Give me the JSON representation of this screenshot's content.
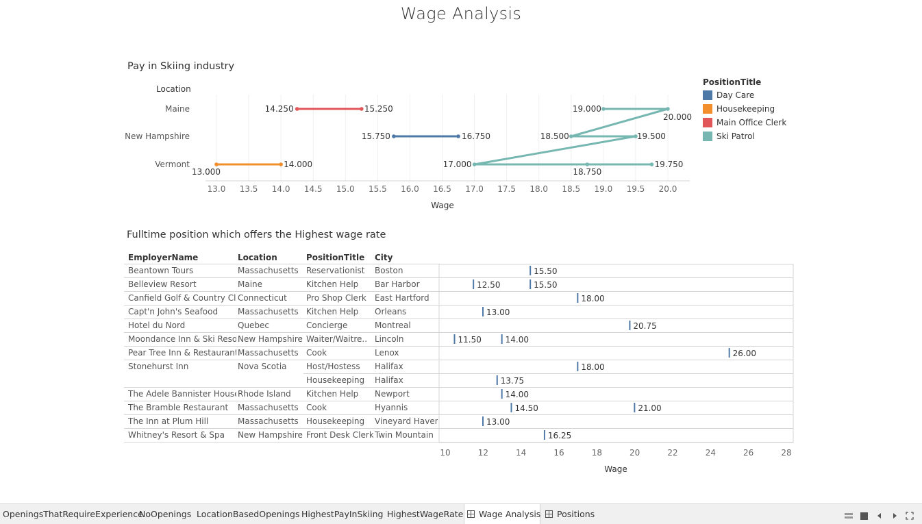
{
  "dashboard": {
    "title": "Wage Analysis"
  },
  "skiing": {
    "title": "Pay in Skiing industry",
    "row_header": "Location",
    "x_label": "Wage",
    "x_ticks": [
      "13.0",
      "13.5",
      "14.0",
      "14.5",
      "15.0",
      "15.5",
      "16.0",
      "16.5",
      "17.0",
      "17.5",
      "18.0",
      "18.5",
      "19.0",
      "19.5",
      "20.0"
    ],
    "locations": [
      "Maine",
      "New Hampshire",
      "Vermont"
    ]
  },
  "legend": {
    "title": "PositionTitle",
    "items": [
      {
        "label": "Day Care",
        "color": "#4e79a7"
      },
      {
        "label": "Housekeeping",
        "color": "#f28e2b"
      },
      {
        "label": "Main Office Clerk",
        "color": "#e15759"
      },
      {
        "label": "Ski Patrol",
        "color": "#76b7b2"
      }
    ]
  },
  "chart_data": [
    {
      "type": "line",
      "title": "Pay in Skiing industry",
      "xlabel": "Wage",
      "xlim": [
        12.8,
        20.3
      ],
      "rows": [
        "Maine",
        "New Hampshire",
        "Vermont"
      ],
      "series": [
        {
          "name": "Main Office Clerk",
          "points": [
            {
              "row": "Maine",
              "x": 14.25,
              "label": "14.250"
            },
            {
              "row": "Maine",
              "x": 15.25,
              "label": "15.250"
            }
          ]
        },
        {
          "name": "Day Care",
          "points": [
            {
              "row": "New Hampshire",
              "x": 15.75,
              "label": "15.750"
            },
            {
              "row": "New Hampshire",
              "x": 16.75,
              "label": "16.750"
            }
          ]
        },
        {
          "name": "Housekeeping",
          "points": [
            {
              "row": "Vermont",
              "x": 13.0,
              "label": "13.000"
            },
            {
              "row": "Vermont",
              "x": 14.0,
              "label": "14.000"
            }
          ]
        },
        {
          "name": "Ski Patrol",
          "points": [
            {
              "row": "Maine",
              "x": 19.0,
              "label": "19.000"
            },
            {
              "row": "Maine",
              "x": 20.0,
              "label": "20.000"
            },
            {
              "row": "New Hampshire",
              "x": 18.5,
              "label": "18.500"
            },
            {
              "row": "New Hampshire",
              "x": 19.5,
              "label": "19.500"
            },
            {
              "row": "Vermont",
              "x": 17.0,
              "label": "17.000"
            },
            {
              "row": "Vermont",
              "x": 18.75,
              "label": "18.750"
            },
            {
              "row": "Vermont",
              "x": 19.75,
              "label": "19.750"
            }
          ]
        }
      ]
    },
    {
      "type": "table",
      "title": "Fulltime position which offers the Highest wage rate",
      "columns": [
        "EmployerName",
        "Location",
        "PositionTitle",
        "City"
      ],
      "xlabel": "Wage",
      "xlim": [
        9.7,
        28.2
      ],
      "x_ticks": [
        10,
        12,
        14,
        16,
        18,
        20,
        22,
        24,
        26,
        28
      ],
      "rows": [
        {
          "employer": "Beantown Tours",
          "location": "Massachusetts",
          "position": "Reservationist",
          "city": "Boston",
          "wages": [
            15.5
          ]
        },
        {
          "employer": "Belleview Resort",
          "location": "Maine",
          "position": "Kitchen Help",
          "city": "Bar Harbor",
          "wages": [
            12.5,
            15.5
          ]
        },
        {
          "employer": "Canfield Golf & Country Cl..",
          "location": "Connecticut",
          "position": "Pro Shop Clerk",
          "city": "East Hartford",
          "wages": [
            18.0
          ]
        },
        {
          "employer": "Capt'n John's Seafood",
          "location": "Massachusetts",
          "position": "Kitchen Help",
          "city": "Orleans",
          "wages": [
            13.0
          ]
        },
        {
          "employer": "Hotel du Nord",
          "location": "Quebec",
          "position": "Concierge",
          "city": "Montreal",
          "wages": [
            20.75
          ]
        },
        {
          "employer": "Moondance Inn & Ski Reso..",
          "location": "New Hampshire",
          "position": "Waiter/Waitre..",
          "city": "Lincoln",
          "wages": [
            11.5,
            14.0
          ]
        },
        {
          "employer": "Pear Tree Inn & Restaurant",
          "location": "Massachusetts",
          "position": "Cook",
          "city": "Lenox",
          "wages": [
            26.0
          ]
        },
        {
          "employer": "Stonehurst Inn",
          "location": "Nova Scotia",
          "position": "Host/Hostess",
          "city": "Halifax",
          "wages": [
            18.0
          ]
        },
        {
          "employer": "",
          "location": "",
          "position": "Housekeeping",
          "city": "Halifax",
          "wages": [
            13.75
          ]
        },
        {
          "employer": "The Adele Bannister House",
          "location": "Rhode Island",
          "position": "Kitchen Help",
          "city": "Newport",
          "wages": [
            14.0
          ]
        },
        {
          "employer": "The Bramble Restaurant",
          "location": "Massachusetts",
          "position": "Cook",
          "city": "Hyannis",
          "wages": [
            14.5,
            21.0
          ]
        },
        {
          "employer": "The Inn at Plum Hill",
          "location": "Massachusetts",
          "position": "Housekeeping",
          "city": "Vineyard Haven",
          "wages": [
            13.0
          ]
        },
        {
          "employer": "Whitney's Resort & Spa",
          "location": "New Hampshire",
          "position": "Front Desk Clerk",
          "city": "Twin Mountain",
          "wages": [
            16.25
          ]
        }
      ],
      "wage_labels": [
        [
          "15.50"
        ],
        [
          "12.50",
          "15.50"
        ],
        [
          "18.00"
        ],
        [
          "13.00"
        ],
        [
          "20.75"
        ],
        [
          "11.50",
          "14.00"
        ],
        [
          "26.00"
        ],
        [
          "18.00"
        ],
        [
          "13.75"
        ],
        [
          "14.00"
        ],
        [
          "14.50",
          "21.00"
        ],
        [
          "13.00"
        ],
        [
          "16.25"
        ]
      ],
      "mark_color": "#4e79a7"
    }
  ],
  "highest": {
    "title": "Fulltime position which offers the Highest wage rate",
    "headers": {
      "employer": "EmployerName",
      "location": "Location",
      "position": "PositionTitle",
      "city": "City"
    },
    "x_label": "Wage"
  },
  "tabs": [
    {
      "label": "OpeningsThatRequireExperience",
      "active": false
    },
    {
      "label": "NoOpenings",
      "active": false
    },
    {
      "label": "LocationBasedOpenings",
      "active": false
    },
    {
      "label": "HighestPayInSkiing",
      "active": false
    },
    {
      "label": "HighestWageRate",
      "active": false
    },
    {
      "label": "Wage Analysis",
      "active": true
    },
    {
      "label": "Positions",
      "active": false
    }
  ],
  "controls": [
    "grid-view-icon",
    "filmstrip-view-icon",
    "previous-sheet-icon",
    "next-sheet-icon",
    "fullscreen-icon"
  ]
}
